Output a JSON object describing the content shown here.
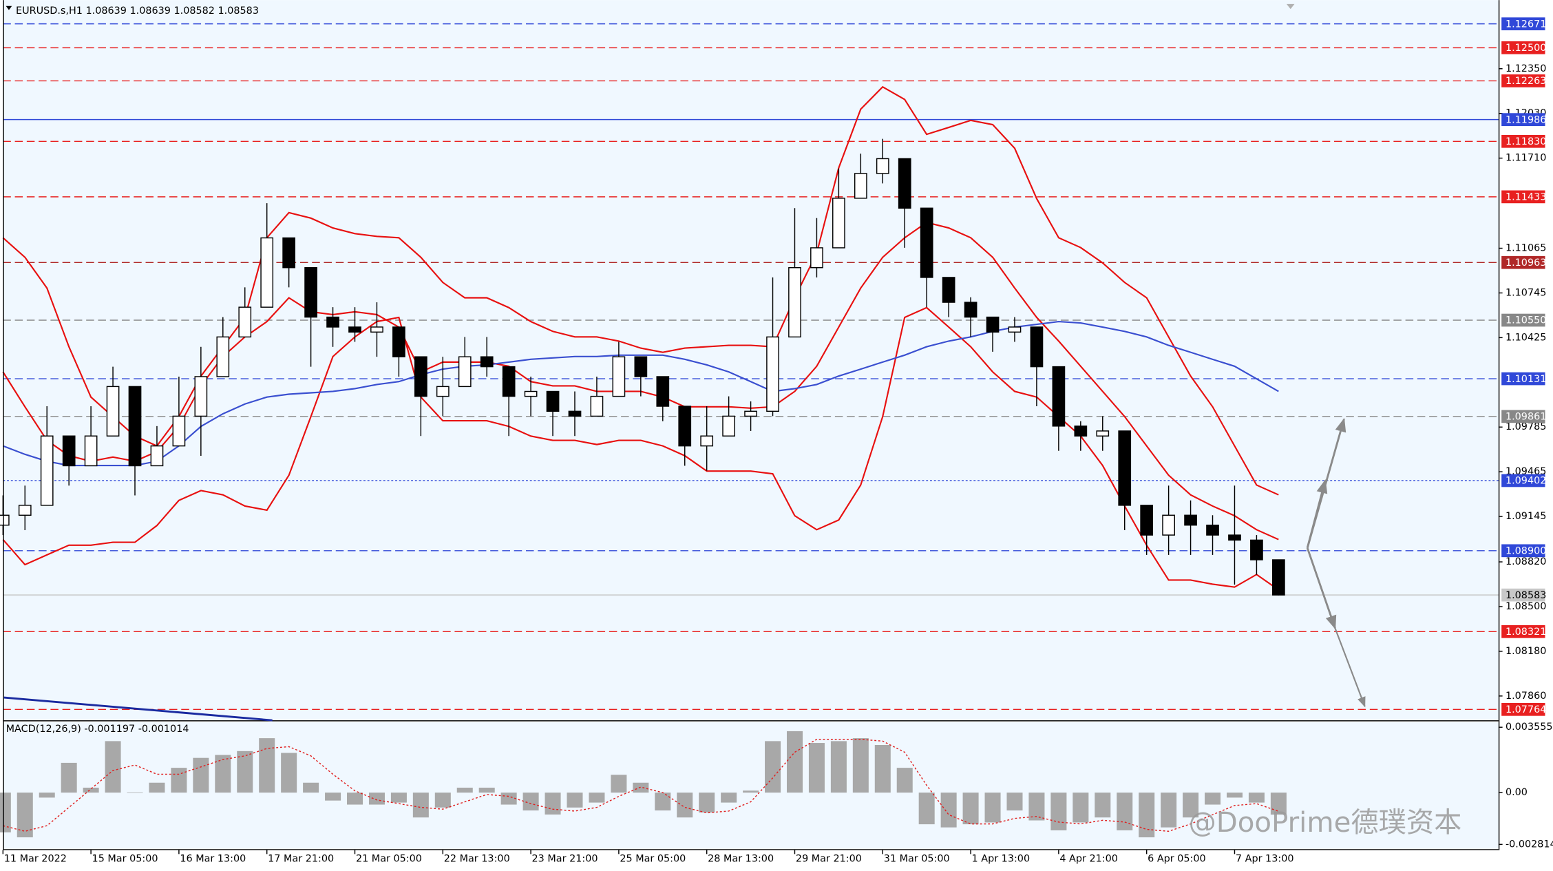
{
  "chart_data": [
    {
      "type": "candlestick",
      "title": "EURUSD.s,H1  1.08639 1.08639 1.08582 1.08583",
      "x": [
        0,
        8,
        16,
        24,
        32,
        40,
        48,
        56,
        64,
        72,
        80,
        88,
        96,
        104,
        112,
        120,
        128,
        136,
        144,
        152,
        160,
        168,
        176,
        184,
        192,
        200,
        208,
        216,
        224,
        232,
        240,
        248,
        256,
        264,
        272,
        280,
        288,
        296,
        304,
        312,
        320,
        328,
        336,
        344,
        352,
        360,
        368,
        376,
        384,
        392,
        400,
        408,
        416,
        424,
        432,
        440,
        448,
        456,
        464
      ],
      "open": [
        1.09083,
        1.09154,
        1.09225,
        1.09721,
        1.09508,
        1.09721,
        1.10075,
        1.09508,
        1.0965,
        1.09863,
        1.10146,
        1.1043,
        1.10643,
        1.11139,
        1.10926,
        1.10572,
        1.10501,
        1.10465,
        1.10501,
        1.10288,
        1.10005,
        1.10075,
        1.10288,
        1.10217,
        1.10005,
        1.1004,
        1.09898,
        1.09863,
        1.10005,
        1.10288,
        1.10146,
        1.09934,
        1.0965,
        1.09721,
        1.09863,
        1.09898,
        1.1043,
        1.10926,
        1.11068,
        1.11423,
        1.116,
        1.11706,
        1.11352,
        1.10856,
        1.10678,
        1.10572,
        1.10465,
        1.10501,
        1.10217,
        1.09792,
        1.09721,
        1.09757,
        1.09225,
        1.09012,
        1.09154,
        1.09083,
        1.09012,
        1.08976,
        1.08835
      ],
      "high": [
        1.09296,
        1.09366,
        1.09934,
        1.09721,
        1.09934,
        1.10217,
        1.10075,
        1.09792,
        1.10146,
        1.10359,
        1.10572,
        1.10785,
        1.11387,
        1.11139,
        1.10926,
        1.10643,
        1.10643,
        1.10678,
        1.10501,
        1.10288,
        1.10288,
        1.1043,
        1.1043,
        1.10217,
        1.10146,
        1.1004,
        1.1004,
        1.10146,
        1.10395,
        1.10288,
        1.10146,
        1.09934,
        1.09934,
        1.10005,
        1.09969,
        1.10856,
        1.11352,
        1.11281,
        1.11636,
        1.11742,
        1.11848,
        1.11706,
        1.11352,
        1.10856,
        1.10714,
        1.10572,
        1.10572,
        1.10501,
        1.10217,
        1.09827,
        1.09863,
        1.09757,
        1.09225,
        1.09366,
        1.0926,
        1.09154,
        1.09366,
        1.09012,
        1.08835
      ],
      "low": [
        1.09012,
        1.09047,
        1.09225,
        1.09366,
        1.09508,
        1.09721,
        1.09296,
        1.09508,
        1.0965,
        1.09579,
        1.10146,
        1.1043,
        1.10643,
        1.10785,
        1.10217,
        1.10359,
        1.10395,
        1.10288,
        1.10146,
        1.09721,
        1.09863,
        1.10075,
        1.10146,
        1.09721,
        1.09863,
        1.09721,
        1.09721,
        1.09863,
        1.10005,
        1.10005,
        1.09827,
        1.09508,
        1.09473,
        1.09721,
        1.09757,
        1.09863,
        1.1043,
        1.10856,
        1.11068,
        1.11423,
        1.11529,
        1.11068,
        1.10643,
        1.10572,
        1.1043,
        1.10324,
        1.10395,
        1.09934,
        1.09615,
        1.09615,
        1.09615,
        1.09047,
        1.0887,
        1.0887,
        1.0887,
        1.0887,
        1.08657,
        1.08728,
        1.0858
      ],
      "close": [
        1.09154,
        1.09225,
        1.09721,
        1.09508,
        1.09721,
        1.10075,
        1.09508,
        1.0965,
        1.09863,
        1.10146,
        1.1043,
        1.10643,
        1.11139,
        1.10926,
        1.10572,
        1.10501,
        1.10465,
        1.10501,
        1.10288,
        1.10005,
        1.10075,
        1.10288,
        1.10217,
        1.10005,
        1.1004,
        1.09898,
        1.09863,
        1.10005,
        1.10288,
        1.10146,
        1.09934,
        1.0965,
        1.09721,
        1.09863,
        1.09898,
        1.1043,
        1.10926,
        1.11068,
        1.11423,
        1.116,
        1.11706,
        1.11352,
        1.10856,
        1.10678,
        1.10572,
        1.10465,
        1.10501,
        1.10217,
        1.09792,
        1.09721,
        1.09757,
        1.09225,
        1.09012,
        1.09154,
        1.09083,
        1.09012,
        1.08976,
        1.08835,
        1.08583
      ],
      "overlays": [
        {
          "color": "#e81010",
          "values": [
            1.1114,
            1.11,
            1.1078,
            1.1036,
            1.1,
            1.0986,
            1.0972,
            1.0965,
            1.0986,
            1.1015,
            1.1036,
            1.1057,
            1.1114,
            1.1132,
            1.1128,
            1.1121,
            1.1117,
            1.1115,
            1.1114,
            1.11,
            1.1082,
            1.1071,
            1.1071,
            1.1064,
            1.1054,
            1.1047,
            1.1043,
            1.1043,
            1.104,
            1.1035,
            1.1032,
            1.1035,
            1.1036,
            1.1037,
            1.1037,
            1.1036,
            1.1071,
            1.1103,
            1.1164,
            1.1206,
            1.1222,
            1.1213,
            1.1188,
            1.1193,
            1.1198,
            1.1195,
            1.1178,
            1.1142,
            1.1114,
            1.1107,
            1.1096,
            1.1082,
            1.1071,
            1.1043,
            1.1015,
            1.0993,
            1.0965,
            1.0937,
            1.093
          ]
        },
        {
          "color": "#e81010",
          "values": [
            1.1018,
            1.0993,
            1.0969,
            1.0958,
            1.0954,
            1.0957,
            1.0954,
            1.0961,
            1.0979,
            1.1008,
            1.1029,
            1.1043,
            1.1054,
            1.1071,
            1.1061,
            1.1059,
            1.1061,
            1.1059,
            1.105,
            1.1018,
            1.1025,
            1.1025,
            1.1025,
            1.1022,
            1.1011,
            1.1008,
            1.1008,
            1.1004,
            1.1004,
            1.1004,
            1.1,
            1.0993,
            1.0993,
            1.0993,
            1.0992,
            1.0993,
            1.1004,
            1.1022,
            1.105,
            1.1078,
            1.11,
            1.1114,
            1.1125,
            1.1121,
            1.1114,
            1.11,
            1.1078,
            1.1057,
            1.104,
            1.1022,
            1.1004,
            1.0986,
            1.0965,
            1.0944,
            1.093,
            1.0922,
            1.0915,
            1.0905,
            1.0898
          ]
        },
        {
          "color": "#e81010",
          "values": [
            1.0898,
            1.088,
            1.0887,
            1.0894,
            1.0894,
            1.0896,
            1.0896,
            1.0908,
            1.0926,
            1.0933,
            1.093,
            1.0922,
            1.0919,
            1.0944,
            1.0986,
            1.1029,
            1.1043,
            1.1054,
            1.1057,
            1.1,
            1.0983,
            1.0983,
            1.0983,
            1.0979,
            1.0972,
            1.0969,
            1.0969,
            1.0966,
            1.0969,
            1.0969,
            1.0965,
            1.0958,
            1.0947,
            1.0947,
            1.0947,
            1.0945,
            1.0915,
            1.0905,
            1.0912,
            1.0937,
            1.0986,
            1.1057,
            1.1064,
            1.105,
            1.1036,
            1.1018,
            1.1004,
            1.1,
            1.0986,
            1.0972,
            1.0951,
            1.0922,
            1.0894,
            1.0869,
            1.0869,
            1.0866,
            1.0864,
            1.0873,
            1.0862
          ]
        },
        {
          "color": "#3a4fd0",
          "values": [
            1.0965,
            1.0959,
            1.0954,
            1.0951,
            1.0951,
            1.0951,
            1.0951,
            1.0954,
            1.0965,
            1.0979,
            1.0988,
            1.0995,
            1.1,
            1.1002,
            1.1003,
            1.1004,
            1.1006,
            1.1009,
            1.1011,
            1.1016,
            1.102,
            1.1022,
            1.1023,
            1.1025,
            1.1027,
            1.1028,
            1.1029,
            1.1029,
            1.103,
            1.103,
            1.103,
            1.1027,
            1.1023,
            1.1018,
            1.1011,
            1.1004,
            1.1006,
            1.1009,
            1.1015,
            1.102,
            1.1025,
            1.103,
            1.1036,
            1.104,
            1.1043,
            1.1047,
            1.105,
            1.1052,
            1.1054,
            1.1053,
            1.105,
            1.1047,
            1.1043,
            1.1037,
            1.1032,
            1.1027,
            1.1022,
            1.1013,
            1.1004
          ]
        }
      ],
      "levels": [
        {
          "value": 1.12671,
          "color": "#3048d8",
          "style": "dashed"
        },
        {
          "value": 1.125,
          "label": "1.12500",
          "color": "#e82020",
          "style": "dashed"
        },
        {
          "value": 1.12263,
          "color": "#e82020",
          "style": "dashed"
        },
        {
          "value": 1.11986,
          "color": "#3048d8",
          "style": "solid"
        },
        {
          "value": 1.1183,
          "label": "1.11830",
          "color": "#e82020",
          "style": "dashed"
        },
        {
          "value": 1.11433,
          "color": "#e82020",
          "style": "dashed"
        },
        {
          "value": 1.10963,
          "color": "#b02828",
          "style": "dashed"
        },
        {
          "value": 1.1055,
          "label": "1.10550",
          "color": "#888888",
          "style": "dashed"
        },
        {
          "value": 1.10131,
          "color": "#3048d8",
          "style": "dashed"
        },
        {
          "value": 1.09861,
          "color": "#888888",
          "style": "dashed"
        },
        {
          "value": 1.09402,
          "color": "#3048d8",
          "style": "dotted"
        },
        {
          "value": 1.089,
          "label": "1.08900",
          "color": "#3048d8",
          "style": "dashed"
        },
        {
          "value": 1.08583,
          "color": "#c8c8c8",
          "style": "solid",
          "text_color": "#000000"
        },
        {
          "value": 1.08321,
          "color": "#e82020",
          "style": "dashed"
        },
        {
          "value": 1.07764,
          "color": "#e82020",
          "style": "dashed"
        }
      ],
      "xlim": [
        0,
        544
      ],
      "xticks": [
        {
          "value": 0,
          "label": "11 Mar 2022"
        },
        {
          "value": 32,
          "label": "15 Mar 05:00"
        },
        {
          "value": 64,
          "label": "16 Mar 13:00"
        },
        {
          "value": 96,
          "label": "17 Mar 21:00"
        },
        {
          "value": 128,
          "label": "21 Mar 05:00"
        },
        {
          "value": 160,
          "label": "22 Mar 13:00"
        },
        {
          "value": 192,
          "label": "23 Mar 21:00"
        },
        {
          "value": 224,
          "label": "25 Mar 05:00"
        },
        {
          "value": 256,
          "label": "28 Mar 13:00"
        },
        {
          "value": 288,
          "label": "29 Mar 21:00"
        },
        {
          "value": 320,
          "label": "31 Mar 05:00"
        },
        {
          "value": 352,
          "label": "1 Apr 13:00"
        },
        {
          "value": 384,
          "label": "4 Apr 21:00"
        },
        {
          "value": 416,
          "label": "6 Apr 05:00"
        },
        {
          "value": 448,
          "label": "7 Apr 13:00"
        }
      ],
      "ylim": [
        1.07686,
        1.12841
      ],
      "yticks": [
        {
          "value": 1.1235,
          "label": "1.12350"
        },
        {
          "value": 1.1203,
          "label": "1.12030"
        },
        {
          "value": 1.1171,
          "label": "1.11710"
        },
        1.11065,
        1.10745,
        1.10425,
        1.09785,
        1.09465,
        1.09145,
        {
          "value": 1.0882,
          "label": "1.08820"
        },
        {
          "value": 1.085,
          "label": "1.08500"
        },
        {
          "value": 1.0818,
          "label": "1.08180"
        },
        {
          "value": 1.0786,
          "label": "1.07860"
        }
      ],
      "grid": false
    },
    {
      "type": "bar",
      "title": "MACD(12,26,9) -0.001197 -0.001014",
      "color": "#a8a8a8",
      "x": [
        0,
        8,
        16,
        24,
        32,
        40,
        48,
        56,
        64,
        72,
        80,
        88,
        96,
        104,
        112,
        120,
        128,
        136,
        144,
        152,
        160,
        168,
        176,
        184,
        192,
        200,
        208,
        216,
        224,
        232,
        240,
        248,
        256,
        264,
        272,
        280,
        288,
        296,
        304,
        312,
        320,
        328,
        336,
        344,
        352,
        360,
        368,
        376,
        384,
        392,
        400,
        408,
        416,
        424,
        432,
        440,
        448,
        456,
        464
      ],
      "values": [
        -0.00216,
        -0.00243,
        -0.00027,
        0.00162,
        0.00027,
        0.0028,
        0,
        0.00054,
        0.00135,
        0.00189,
        0.00205,
        0.00226,
        0.00296,
        0.00216,
        0.00054,
        -0.00043,
        -0.00065,
        -0.00065,
        -0.00054,
        -0.00135,
        -0.00081,
        0.00027,
        0.00027,
        -0.00065,
        -0.00097,
        -0.00119,
        -0.00081,
        -0.00054,
        0.00097,
        0.00054,
        -0.00097,
        -0.00135,
        -0.00108,
        -0.00054,
        0.00011,
        0.0028,
        0.00334,
        0.0027,
        0.0028,
        0.00296,
        0.00259,
        0.00135,
        -0.00172,
        -0.00189,
        -0.00172,
        -0.00162,
        -0.00097,
        -0.00151,
        -0.00205,
        -0.00162,
        -0.00135,
        -0.00205,
        -0.00243,
        -0.00189,
        -0.00135,
        -0.00065,
        -0.00027,
        -0.00054,
        -0.001197
      ],
      "signal": {
        "color": "#e02020",
        "values": [
          -0.0018,
          -0.0021,
          -0.0018,
          -0.0008,
          0.0002,
          0.0012,
          0.0015,
          0.001,
          0.001,
          0.0014,
          0.0018,
          0.002,
          0.0024,
          0.0025,
          0.002,
          0.001,
          0.0001,
          -0.0004,
          -0.0006,
          -0.0008,
          -0.0009,
          -0.0005,
          -0.0001,
          -0.0002,
          -0.0006,
          -0.0009,
          -0.001,
          -0.0008,
          -0.0002,
          0.0003,
          0,
          -0.0008,
          -0.0011,
          -0.001,
          -0.0005,
          0.0008,
          0.0022,
          0.0029,
          0.0029,
          0.0029,
          0.0028,
          0.0022,
          0.0004,
          -0.0012,
          -0.0017,
          -0.0017,
          -0.0014,
          -0.0013,
          -0.0016,
          -0.0017,
          -0.0015,
          -0.0016,
          -0.002,
          -0.0021,
          -0.0017,
          -0.0012,
          -0.0007,
          -0.0006,
          -0.001014
        ]
      },
      "xlim": [
        0,
        544
      ],
      "ylim": [
        -0.00307,
        0.003824
      ],
      "yticks": [
        0.003555,
        {
          "value": 0,
          "label": "0.00"
        },
        -0.002814
      ]
    }
  ],
  "watermark": "@DooPrime德璞资本"
}
